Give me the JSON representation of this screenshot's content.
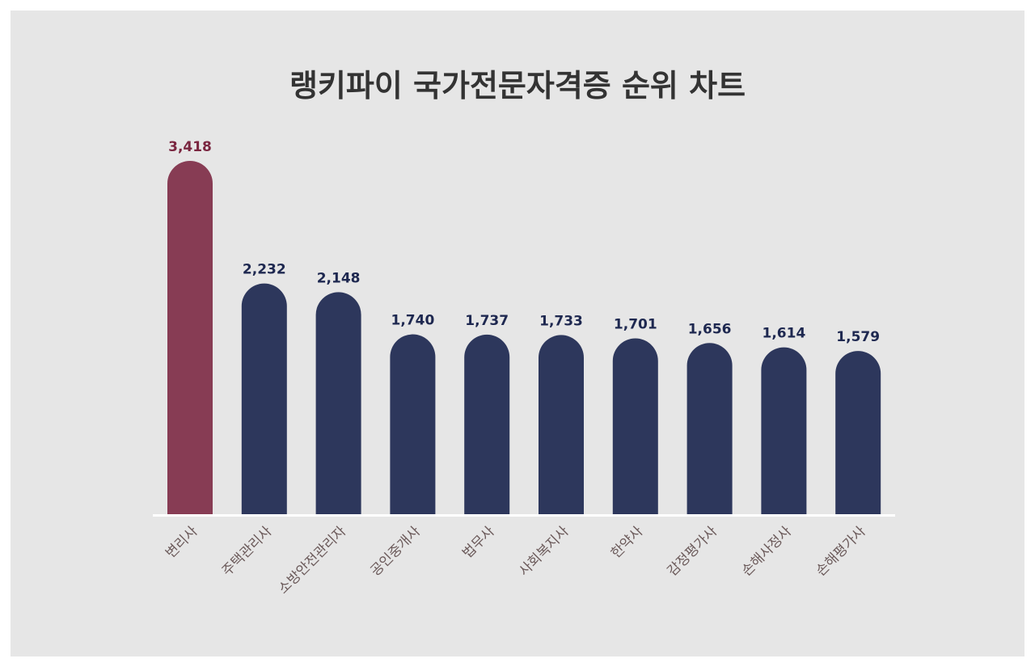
{
  "chart_data": {
    "type": "bar",
    "title": "랭키파이 국가전문자격증 순위 차트",
    "categories": [
      "변리사",
      "주택관리사",
      "소방안전관리자",
      "공인중개사",
      "법무사",
      "사회복지사",
      "한약사",
      "감정평가사",
      "손해사정사",
      "손해평가사"
    ],
    "values": [
      3418,
      2232,
      2148,
      1740,
      1737,
      1733,
      1701,
      1656,
      1614,
      1579
    ],
    "value_labels": [
      "3,418",
      "2,232",
      "2,148",
      "1,740",
      "1,737",
      "1,733",
      "1,701",
      "1,656",
      "1,614",
      "1,579"
    ],
    "highlight_index": 0,
    "xlabel": "",
    "ylabel": "",
    "grid": false,
    "colors": {
      "highlight": "#873c54",
      "bar": "#2d375c",
      "highlight_label": "#7a2640",
      "label": "#1e2850",
      "baseline": "#ffffff",
      "background": "#e6e6e6"
    }
  }
}
